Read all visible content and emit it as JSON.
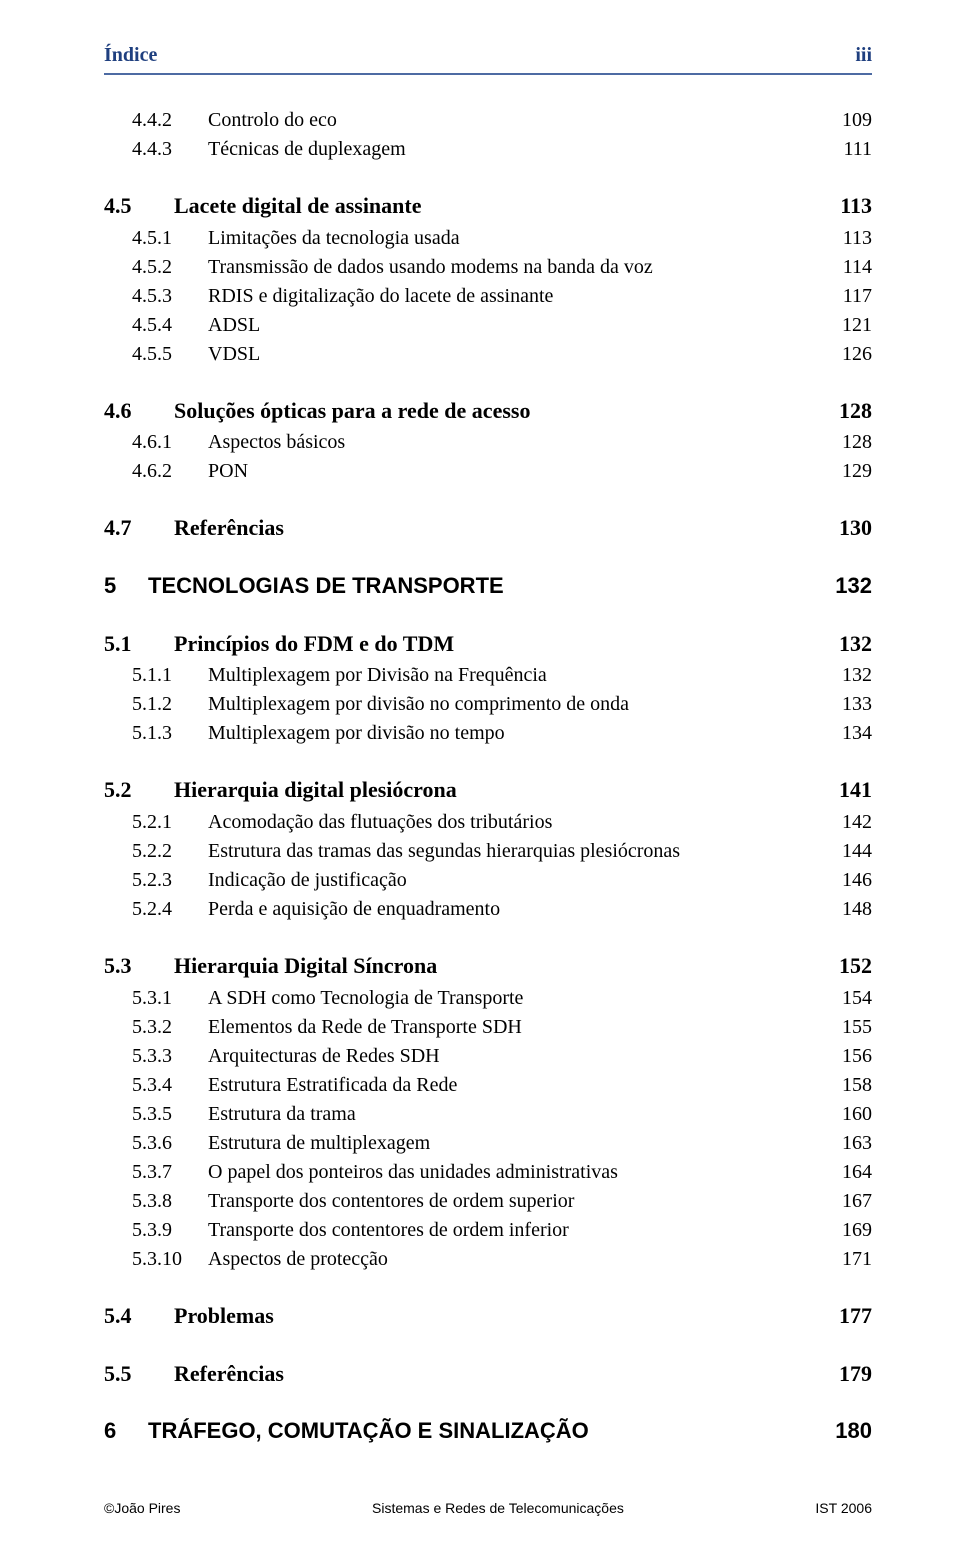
{
  "header": {
    "left": "Índice",
    "right": "iii"
  },
  "colors": {
    "header_text": "#1f3f7f",
    "header_rule": "#4d6ba3",
    "body_text": "#000000",
    "background": "#ffffff"
  },
  "typography": {
    "body_font": "Times New Roman",
    "heading_font": "Arial",
    "level1_size_pt": 16,
    "level2_size_pt": 15,
    "header_size_pt": 15
  },
  "entries": {
    "e0": {
      "num": "4.4.2",
      "title": "Controlo do eco",
      "page": "109"
    },
    "e1": {
      "num": "4.4.3",
      "title": "Técnicas de duplexagem",
      "page": "111"
    },
    "e2": {
      "num": "4.5",
      "title": "Lacete digital de assinante",
      "page": "113"
    },
    "e3": {
      "num": "4.5.1",
      "title": "Limitações da tecnologia usada",
      "page": "113"
    },
    "e4": {
      "num": "4.5.2",
      "title": "Transmissão de dados usando modems na banda da voz",
      "page": "114"
    },
    "e5": {
      "num": "4.5.3",
      "title": "RDIS e digitalização do lacete de assinante",
      "page": "117"
    },
    "e6": {
      "num": "4.5.4",
      "title": "ADSL",
      "page": "121"
    },
    "e7": {
      "num": "4.5.5",
      "title": "VDSL",
      "page": "126"
    },
    "e8": {
      "num": "4.6",
      "title": "Soluções ópticas para a rede de acesso",
      "page": "128"
    },
    "e9": {
      "num": "4.6.1",
      "title": "Aspectos básicos",
      "page": "128"
    },
    "e10": {
      "num": "4.6.2",
      "title": "PON",
      "page": "129"
    },
    "e11": {
      "num": "4.7",
      "title": "Referências",
      "page": "130"
    },
    "e12": {
      "num": "5",
      "title": "TECNOLOGIAS DE TRANSPORTE",
      "page": "132"
    },
    "e13": {
      "num": "5.1",
      "title": "Princípios do FDM e do TDM",
      "page": "132"
    },
    "e14": {
      "num": "5.1.1",
      "title": "Multiplexagem por Divisão na Frequência",
      "page": "132"
    },
    "e15": {
      "num": "5.1.2",
      "title": "Multiplexagem por divisão no comprimento de onda",
      "page": "133"
    },
    "e16": {
      "num": "5.1.3",
      "title": "Multiplexagem por divisão no tempo",
      "page": "134"
    },
    "e17": {
      "num": "5.2",
      "title": "Hierarquia digital plesiócrona",
      "page": "141"
    },
    "e18": {
      "num": "5.2.1",
      "title": "Acomodação das flutuações dos tributários",
      "page": "142"
    },
    "e19": {
      "num": "5.2.2",
      "title": "Estrutura das tramas das segundas hierarquias plesiócronas",
      "page": "144"
    },
    "e20": {
      "num": "5.2.3",
      "title": "Indicação de justificação",
      "page": "146"
    },
    "e21": {
      "num": "5.2.4",
      "title": "Perda e aquisição de enquadramento",
      "page": "148"
    },
    "e22": {
      "num": "5.3",
      "title": "Hierarquia Digital Síncrona",
      "page": "152"
    },
    "e23": {
      "num": "5.3.1",
      "title": "A SDH como Tecnologia de Transporte",
      "page": "154"
    },
    "e24": {
      "num": "5.3.2",
      "title": "Elementos da Rede de Transporte SDH",
      "page": "155"
    },
    "e25": {
      "num": "5.3.3",
      "title": "Arquitecturas de Redes SDH",
      "page": "156"
    },
    "e26": {
      "num": "5.3.4",
      "title": "Estrutura Estratificada da Rede",
      "page": "158"
    },
    "e27": {
      "num": "5.3.5",
      "title": "Estrutura da trama",
      "page": "160"
    },
    "e28": {
      "num": "5.3.6",
      "title": "Estrutura de multiplexagem",
      "page": "163"
    },
    "e29": {
      "num": "5.3.7",
      "title": "O papel dos ponteiros das unidades administrativas",
      "page": "164"
    },
    "e30": {
      "num": "5.3.8",
      "title": "Transporte dos contentores de ordem superior",
      "page": "167"
    },
    "e31": {
      "num": "5.3.9",
      "title": "Transporte dos contentores de ordem inferior",
      "page": "169"
    },
    "e32": {
      "num": "5.3.10",
      "title": "Aspectos de protecção",
      "page": "171"
    },
    "e33": {
      "num": "5.4",
      "title": "Problemas",
      "page": "177"
    },
    "e34": {
      "num": "5.5",
      "title": "Referências",
      "page": "179"
    },
    "e35": {
      "num": "6",
      "title": "TRÁFEGO, COMUTAÇÃO E SINALIZAÇÃO",
      "page": "180"
    }
  },
  "footer": {
    "left": "©João Pires",
    "center": "Sistemas e Redes de Telecomunicações",
    "right": "IST 2006"
  }
}
